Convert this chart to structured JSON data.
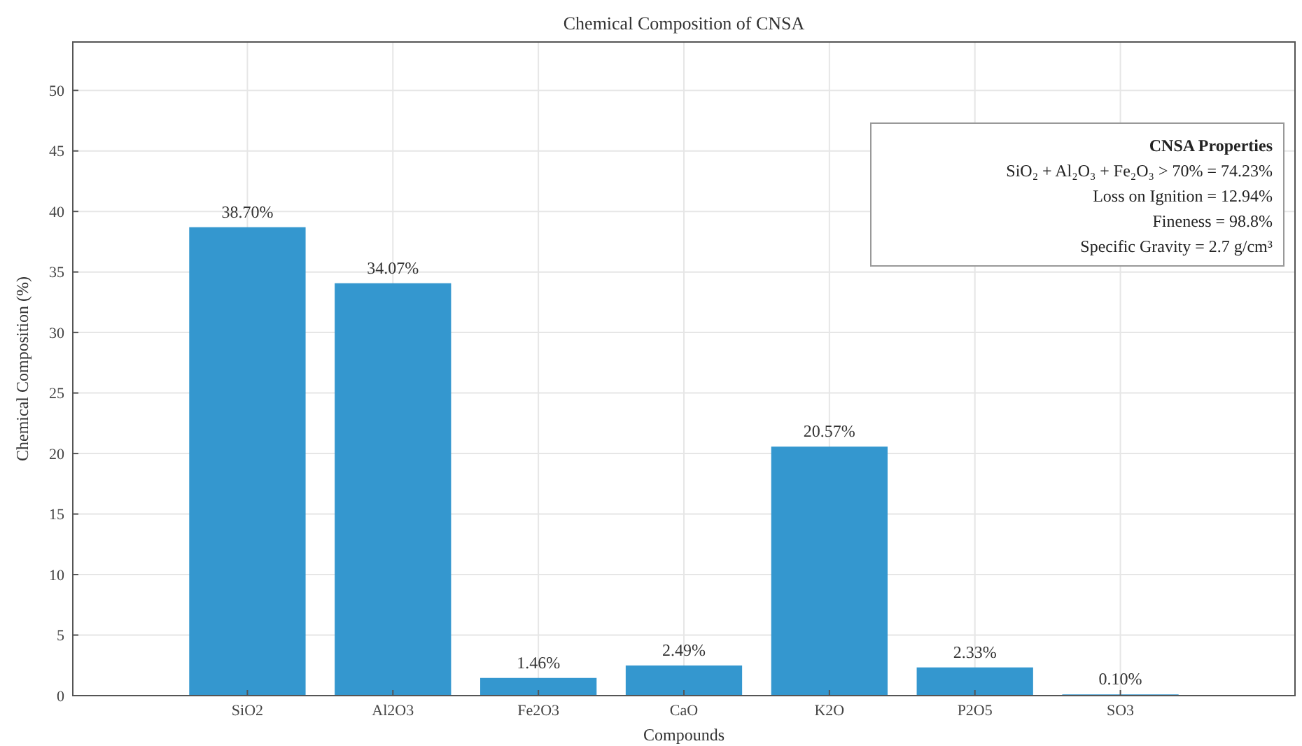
{
  "chart_data": {
    "type": "bar",
    "title": "Chemical Composition of CNSA",
    "xlabel": "Compounds",
    "ylabel": "Chemical Composition (%)",
    "categories": [
      "SiO2",
      "Al2O3",
      "Fe2O3",
      "CaO",
      "K2O",
      "P2O5",
      "SO3"
    ],
    "values": [
      38.7,
      34.07,
      1.46,
      2.49,
      20.57,
      2.33,
      0.1
    ],
    "value_labels": [
      "38.70%",
      "34.07%",
      "1.46%",
      "2.49%",
      "20.57%",
      "2.33%",
      "0.10%"
    ],
    "color": "#3497cf",
    "ylim": [
      0,
      54
    ],
    "yticks": [
      0,
      5,
      10,
      15,
      20,
      25,
      30,
      35,
      40,
      45,
      50
    ],
    "grid": true,
    "annotations": [
      "CNSA Properties",
      "SiO₂ + Al₂O₃ + Fe₂O₃ > 70% = 74.23%",
      "Loss on Ignition = 12.94%",
      "Fineness = 98.8%",
      "Specific Gravity = 2.7 g/cm³"
    ]
  }
}
